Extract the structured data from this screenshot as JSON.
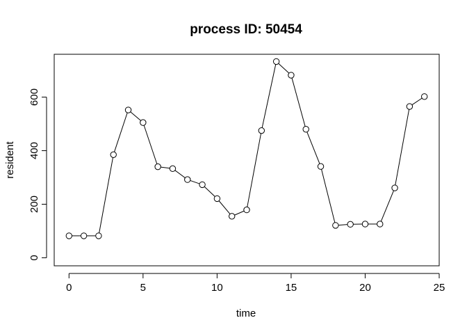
{
  "chart_data": {
    "type": "line",
    "title": "process ID: 50454",
    "xlabel": "time",
    "ylabel": "resident",
    "xlim": [
      -1,
      25
    ],
    "ylim": [
      -30,
      760
    ],
    "xticks": [
      0,
      5,
      10,
      15,
      20,
      25
    ],
    "yticks": [
      0,
      200,
      400,
      600
    ],
    "grid": false,
    "markers": "open-circle",
    "line_color": "#000000",
    "series": [
      {
        "x": [
          0,
          1,
          2,
          3,
          4,
          5,
          6,
          7,
          8,
          9,
          10,
          11,
          12,
          13,
          14,
          15,
          16,
          17,
          18,
          19,
          20,
          21,
          22,
          23,
          24
        ],
        "values": [
          82,
          82,
          82,
          385,
          552,
          505,
          340,
          333,
          292,
          273,
          221,
          155,
          179,
          475,
          733,
          682,
          480,
          341,
          121,
          125,
          126,
          126,
          261,
          565,
          602
        ]
      }
    ]
  }
}
